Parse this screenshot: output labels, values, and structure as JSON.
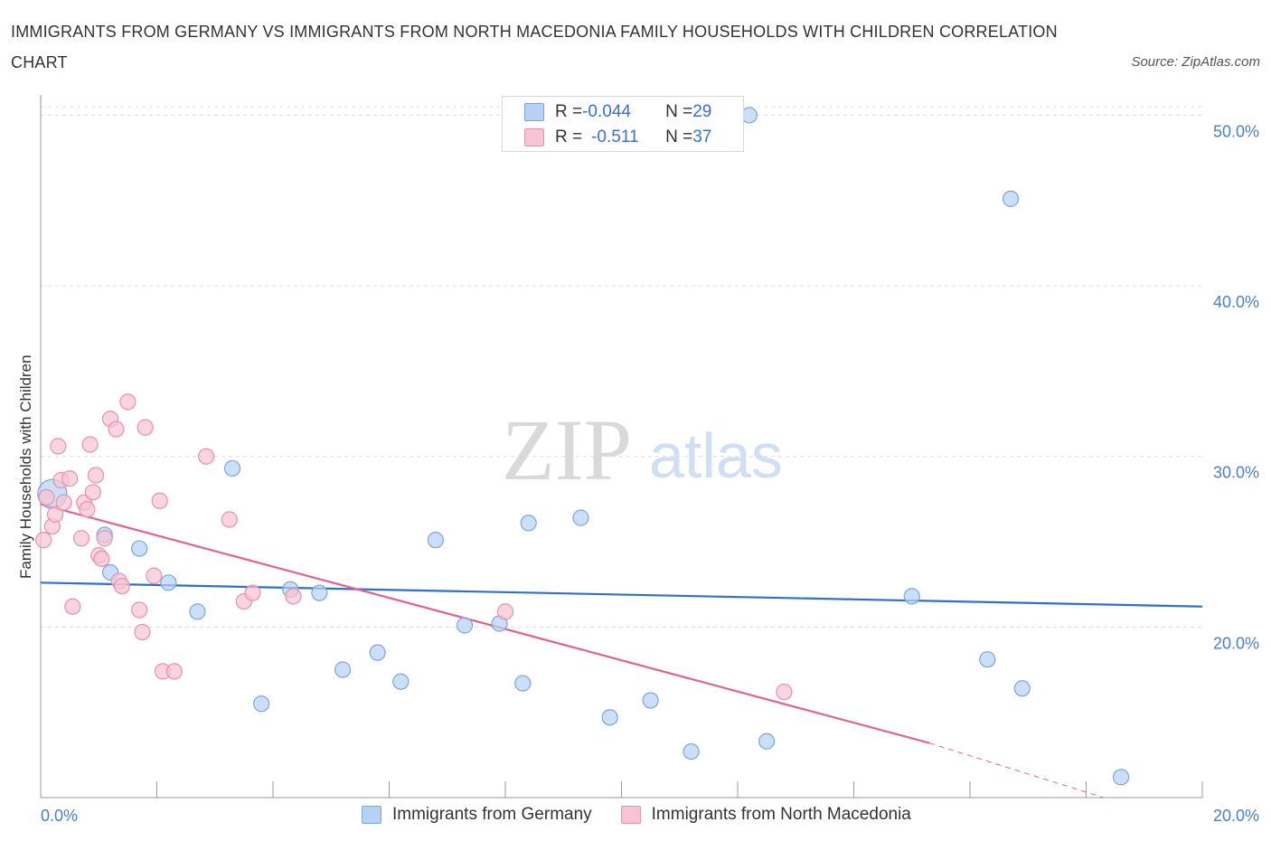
{
  "header": {
    "title": "IMMIGRANTS FROM GERMANY VS IMMIGRANTS FROM NORTH MACEDONIA FAMILY HOUSEHOLDS WITH CHILDREN CORRELATION CHART",
    "source": "Source: ZipAtlas.com"
  },
  "watermark": {
    "zip": "ZIP",
    "atlas": "atlas"
  },
  "colors": {
    "germany_fill": "#b7d1f5",
    "germany_stroke": "#7aa6e0",
    "germany_line": "#2f6fd0",
    "macedonia_fill": "#f8c3d3",
    "macedonia_stroke": "#e890ad",
    "macedonia_line": "#e06690",
    "grid": "#dcdcdc",
    "tick_text": "#4a7fd0"
  },
  "legend": {
    "germany": {
      "r_label": "R = ",
      "r_value": "-0.044",
      "n_label": "N = ",
      "n_value": "29"
    },
    "macedonia": {
      "r_label": "R = ",
      "r_value": "-0.511",
      "n_label": "N = ",
      "n_value": "37"
    }
  },
  "chart_data": {
    "type": "scatter",
    "title": "IMMIGRANTS FROM GERMANY VS IMMIGRANTS FROM NORTH MACEDONIA FAMILY HOUSEHOLDS WITH CHILDREN CORRELATION CHART",
    "xlabel": "",
    "ylabel": "Family Households with Children",
    "xlim": [
      0,
      20
    ],
    "ylim": [
      10,
      50.5
    ],
    "x_ticks": [
      {
        "v": 0,
        "label": "0.0%"
      },
      {
        "v": 20,
        "label": "20.0%"
      }
    ],
    "y_ticks": [
      {
        "v": 20,
        "label": "20.0%"
      },
      {
        "v": 30,
        "label": "30.0%"
      },
      {
        "v": 40,
        "label": "40.0%"
      },
      {
        "v": 50,
        "label": "50.0%"
      }
    ],
    "series": [
      {
        "name": "Immigrants from Germany",
        "points": [
          [
            0.2,
            27.8
          ],
          [
            1.1,
            25.4
          ],
          [
            1.2,
            23.2
          ],
          [
            1.7,
            24.6
          ],
          [
            2.2,
            22.6
          ],
          [
            2.7,
            20.9
          ],
          [
            3.3,
            29.3
          ],
          [
            3.8,
            15.5
          ],
          [
            4.3,
            22.2
          ],
          [
            4.8,
            22.0
          ],
          [
            5.2,
            17.5
          ],
          [
            5.8,
            18.5
          ],
          [
            6.2,
            16.8
          ],
          [
            6.8,
            25.1
          ],
          [
            7.3,
            20.1
          ],
          [
            7.9,
            20.2
          ],
          [
            8.3,
            16.7
          ],
          [
            8.4,
            26.1
          ],
          [
            9.3,
            26.4
          ],
          [
            9.8,
            14.7
          ],
          [
            10.5,
            15.7
          ],
          [
            11.2,
            12.7
          ],
          [
            12.2,
            50.0
          ],
          [
            12.5,
            13.3
          ],
          [
            15.0,
            21.8
          ],
          [
            16.3,
            18.1
          ],
          [
            16.7,
            45.1
          ],
          [
            16.9,
            16.4
          ],
          [
            18.6,
            11.2
          ]
        ]
      },
      {
        "name": "Immigrants from North Macedonia",
        "points": [
          [
            0.05,
            25.1
          ],
          [
            0.1,
            27.6
          ],
          [
            0.2,
            25.9
          ],
          [
            0.25,
            26.6
          ],
          [
            0.3,
            30.6
          ],
          [
            0.35,
            28.6
          ],
          [
            0.4,
            27.3
          ],
          [
            0.5,
            28.7
          ],
          [
            0.55,
            21.2
          ],
          [
            0.7,
            25.2
          ],
          [
            0.75,
            27.3
          ],
          [
            0.8,
            26.9
          ],
          [
            0.85,
            30.7
          ],
          [
            0.9,
            27.9
          ],
          [
            0.95,
            28.9
          ],
          [
            1.0,
            24.2
          ],
          [
            1.05,
            24.0
          ],
          [
            1.1,
            25.2
          ],
          [
            1.2,
            32.2
          ],
          [
            1.3,
            31.6
          ],
          [
            1.35,
            22.7
          ],
          [
            1.4,
            22.4
          ],
          [
            1.5,
            33.2
          ],
          [
            1.7,
            21.0
          ],
          [
            1.75,
            19.7
          ],
          [
            1.8,
            31.7
          ],
          [
            1.95,
            23.0
          ],
          [
            2.05,
            27.4
          ],
          [
            2.1,
            17.4
          ],
          [
            2.3,
            17.4
          ],
          [
            2.85,
            30.0
          ],
          [
            3.25,
            26.3
          ],
          [
            3.5,
            21.5
          ],
          [
            3.65,
            22.0
          ],
          [
            4.35,
            21.8
          ],
          [
            8.0,
            20.9
          ],
          [
            12.8,
            16.2
          ]
        ]
      }
    ],
    "trendlines": [
      {
        "series": "Immigrants from Germany",
        "x": [
          0,
          20
        ],
        "y": [
          22.6,
          21.2
        ],
        "style": "solid"
      },
      {
        "series": "Immigrants from North Macedonia",
        "x": [
          0,
          15.3
        ],
        "y": [
          27.2,
          13.2
        ],
        "style": "solid"
      },
      {
        "series": "Immigrants from North Macedonia",
        "x": [
          15.3,
          18.3
        ],
        "y": [
          13.2,
          10.0
        ],
        "style": "dashed"
      }
    ],
    "legend_entries": [
      "Immigrants from Germany",
      "Immigrants from North Macedonia"
    ]
  }
}
